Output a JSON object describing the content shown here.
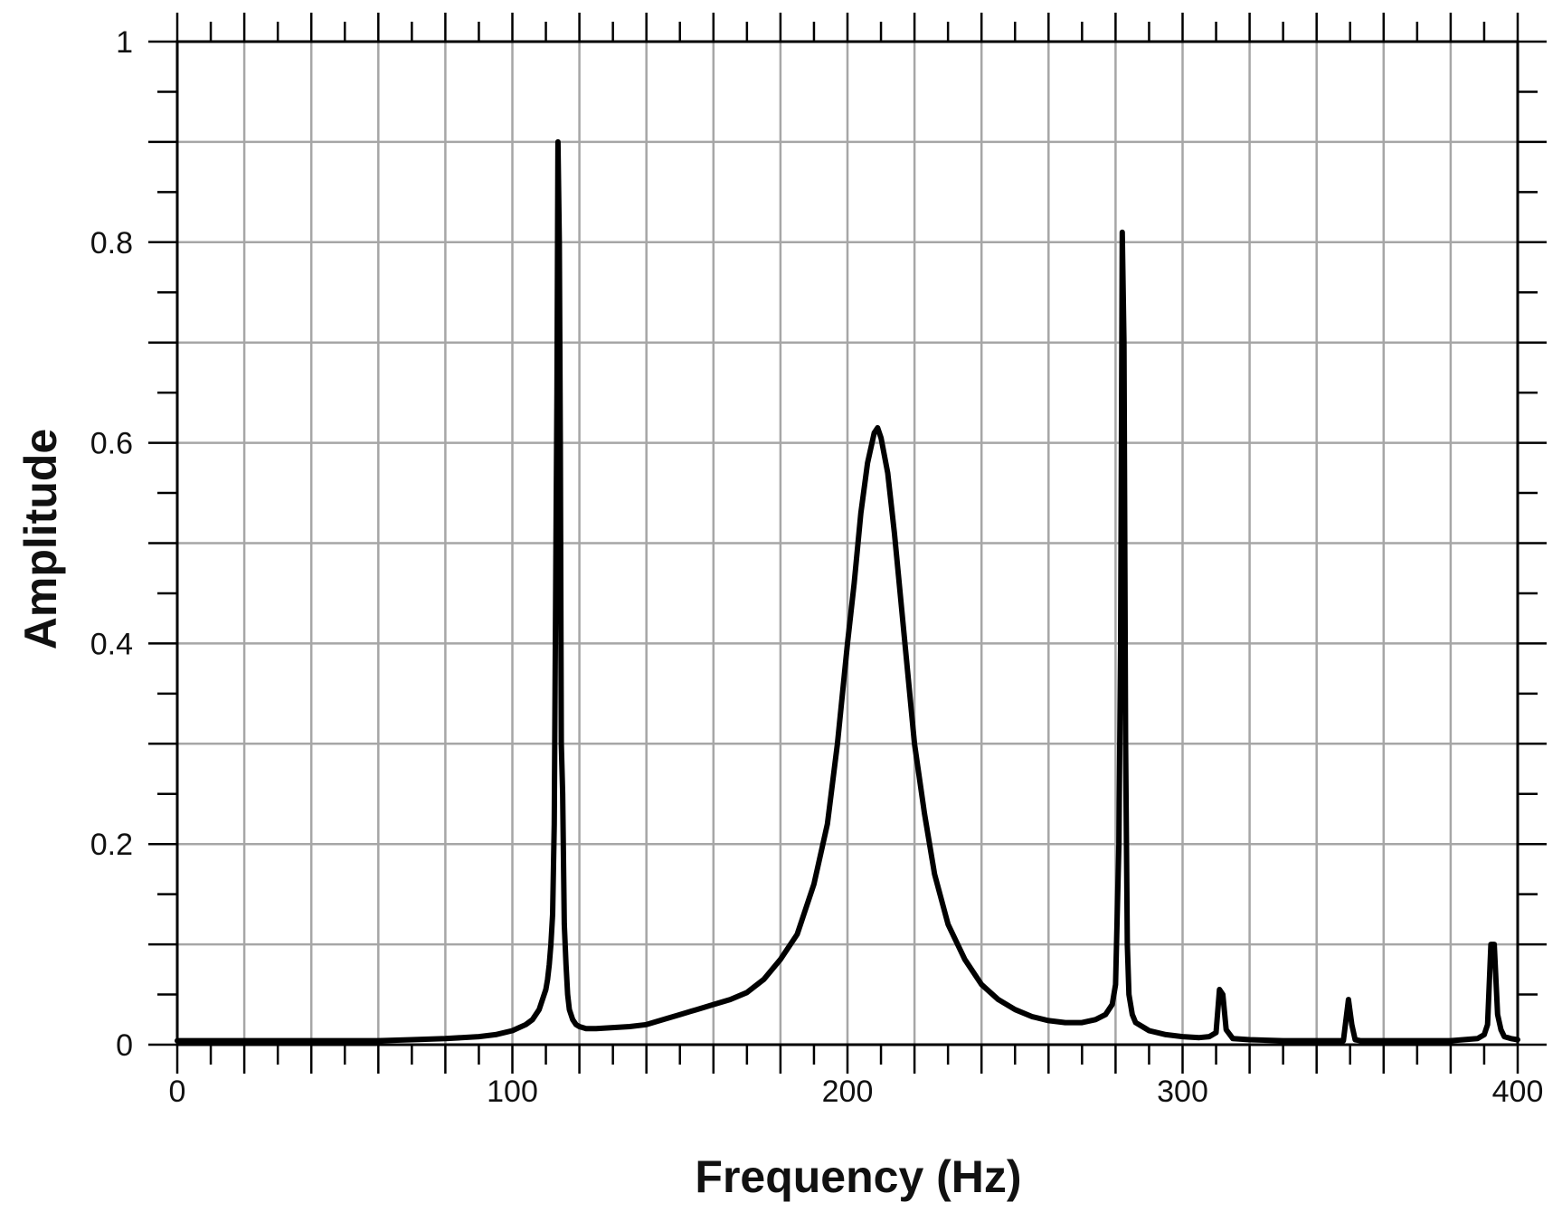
{
  "chart_data": {
    "type": "line",
    "title": "",
    "xlabel": "Frequency (Hz)",
    "ylabel": "Amplitude",
    "xlim": [
      0,
      400
    ],
    "ylim": [
      0,
      1
    ],
    "x_ticks": [
      "0",
      "100",
      "200",
      "300",
      "400"
    ],
    "y_ticks": [
      "0",
      "0.2",
      "0.4",
      "0.6",
      "0.8",
      "1"
    ],
    "x_grid_step": 20,
    "y_grid_step": 0.1,
    "x_minor_step": 10,
    "y_minor_step": 0.05,
    "grid": true,
    "legend": "none",
    "colors": {
      "line": "#000000",
      "grid": "#a6a6a6",
      "axis": "#000000"
    },
    "series": [
      {
        "x": [
          0,
          20,
          40,
          60,
          70,
          80,
          90,
          95,
          100,
          104,
          106,
          108,
          109,
          110,
          110.5,
          111,
          111.5,
          112,
          112.5,
          113,
          113.3,
          113.6,
          114,
          114.3,
          114.6,
          115,
          115.5,
          116,
          116.5,
          117,
          118,
          119,
          120,
          122,
          125,
          130,
          135,
          140,
          145,
          150,
          155,
          160,
          165,
          170,
          175,
          180,
          185,
          190,
          194,
          197,
          200,
          202,
          204,
          206,
          208,
          209,
          210,
          212,
          214,
          216,
          218,
          220,
          223,
          226,
          230,
          235,
          240,
          245,
          250,
          255,
          260,
          265,
          270,
          274,
          277,
          279,
          280,
          281,
          281.5,
          282,
          282.5,
          283,
          283.5,
          284,
          285,
          286,
          288,
          290,
          295,
          300,
          305,
          308,
          310,
          311,
          312,
          313,
          315,
          320,
          330,
          340,
          348,
          349.5,
          350.5,
          351.5,
          353,
          360,
          370,
          380,
          388,
          390,
          391,
          392,
          393,
          394,
          395,
          396,
          398,
          400
        ],
        "y": [
          0.004,
          0.004,
          0.004,
          0.004,
          0.005,
          0.006,
          0.008,
          0.01,
          0.014,
          0.02,
          0.025,
          0.035,
          0.045,
          0.055,
          0.065,
          0.08,
          0.1,
          0.13,
          0.22,
          0.5,
          0.65,
          0.9,
          0.8,
          0.6,
          0.3,
          0.25,
          0.12,
          0.08,
          0.05,
          0.035,
          0.025,
          0.02,
          0.018,
          0.016,
          0.016,
          0.017,
          0.018,
          0.02,
          0.025,
          0.03,
          0.035,
          0.04,
          0.045,
          0.052,
          0.065,
          0.085,
          0.11,
          0.16,
          0.22,
          0.3,
          0.4,
          0.46,
          0.53,
          0.58,
          0.61,
          0.615,
          0.605,
          0.57,
          0.51,
          0.44,
          0.37,
          0.3,
          0.23,
          0.17,
          0.12,
          0.085,
          0.06,
          0.045,
          0.035,
          0.028,
          0.024,
          0.022,
          0.022,
          0.025,
          0.03,
          0.04,
          0.06,
          0.2,
          0.4,
          0.81,
          0.7,
          0.3,
          0.1,
          0.05,
          0.03,
          0.022,
          0.018,
          0.014,
          0.01,
          0.008,
          0.007,
          0.008,
          0.012,
          0.055,
          0.05,
          0.015,
          0.006,
          0.005,
          0.004,
          0.004,
          0.004,
          0.045,
          0.02,
          0.005,
          0.004,
          0.004,
          0.004,
          0.004,
          0.006,
          0.01,
          0.02,
          0.1,
          0.1,
          0.03,
          0.015,
          0.008,
          0.006,
          0.005
        ]
      }
    ]
  }
}
